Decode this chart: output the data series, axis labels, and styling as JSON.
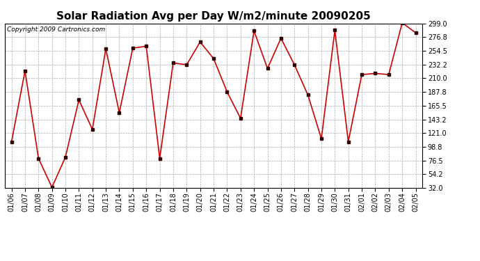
{
  "title": "Solar Radiation Avg per Day W/m2/minute 20090205",
  "copyright": "Copyright 2009 Cartronics.com",
  "dates": [
    "01/06",
    "01/07",
    "01/08",
    "01/09",
    "01/10",
    "01/11",
    "01/12",
    "01/13",
    "01/14",
    "01/15",
    "01/16",
    "01/17",
    "01/18",
    "01/19",
    "01/20",
    "01/21",
    "01/22",
    "01/23",
    "01/24",
    "01/25",
    "01/26",
    "01/27",
    "01/28",
    "01/29",
    "01/30",
    "01/31",
    "02/01",
    "02/02",
    "02/03",
    "02/04",
    "02/05"
  ],
  "values": [
    107,
    222,
    80,
    33,
    82,
    175,
    127,
    258,
    154,
    259,
    262,
    80,
    235,
    232,
    269,
    242,
    188,
    145,
    287,
    226,
    275,
    232,
    183,
    112,
    288,
    107,
    216,
    218,
    216,
    300,
    284
  ],
  "ylim": [
    32.0,
    299.0
  ],
  "yticks": [
    32.0,
    54.2,
    76.5,
    98.8,
    121.0,
    143.2,
    165.5,
    187.8,
    210.0,
    232.2,
    254.5,
    276.8,
    299.0
  ],
  "line_color": "#cc0000",
  "marker_color": "#330000",
  "bg_color": "#ffffff",
  "plot_bg_color": "#ffffff",
  "grid_color": "#aaaaaa",
  "title_fontsize": 11,
  "tick_fontsize": 7,
  "copyright_fontsize": 6.5
}
